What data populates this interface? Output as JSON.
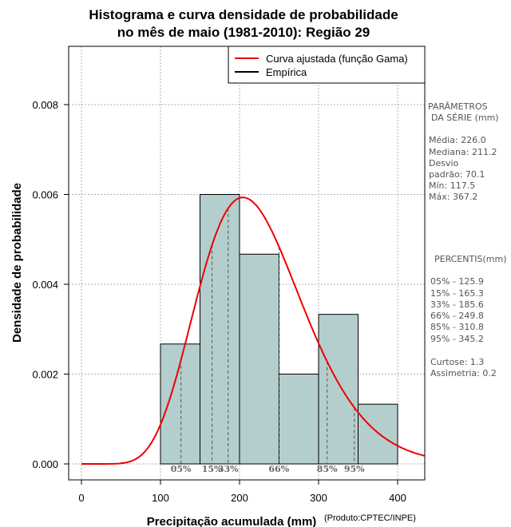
{
  "chart_data": {
    "type": "histogram",
    "title": "Histograma e curva densidade de probabilidade",
    "subtitle": "no mês de maio (1981-2010): Região 29",
    "xlabel": "Precipitação acumulada (mm)",
    "ylabel": "Densidade de probabilidade",
    "credit": "(Produto:CPTEC/INPE)",
    "xlim": [
      0,
      430
    ],
    "ylim": [
      0,
      0.0092
    ],
    "xticks": [
      0,
      100,
      200,
      300,
      400
    ],
    "xtick_labels": [
      "0",
      "100",
      "200",
      "300",
      "400"
    ],
    "yticks": [
      0.0,
      0.002,
      0.004,
      0.006,
      0.008
    ],
    "ytick_labels": [
      "0.000",
      "0.002",
      "0.004",
      "0.006",
      "0.008"
    ],
    "grid": true,
    "bars": [
      {
        "x0": 100,
        "x1": 150,
        "density": 0.00267
      },
      {
        "x0": 150,
        "x1": 200,
        "density": 0.006
      },
      {
        "x0": 200,
        "x1": 250,
        "density": 0.00467
      },
      {
        "x0": 250,
        "x1": 300,
        "density": 0.002
      },
      {
        "x0": 300,
        "x1": 350,
        "density": 0.00333
      },
      {
        "x0": 350,
        "x1": 400,
        "density": 0.00133
      }
    ],
    "gamma_fit": {
      "mean": 226.0,
      "sd": 70.1
    },
    "legend": {
      "placement": "top-right",
      "entries": [
        {
          "label": "Curva ajustada (função Gama)",
          "color": "#ee0000"
        },
        {
          "label": "Empírica",
          "color": "#000000"
        }
      ]
    },
    "percentile_markers": [
      {
        "label": "05%",
        "value": 125.9
      },
      {
        "label": "15%",
        "value": 165.3
      },
      {
        "label": "33%",
        "value": 185.6
      },
      {
        "label": "66%",
        "value": 249.8
      },
      {
        "label": "85%",
        "value": 310.8
      },
      {
        "label": "95%",
        "value": 345.2
      }
    ],
    "side_panel": {
      "params_title_1": "PARÂMETROS",
      "params_title_2": "DA SÉRIE (mm)",
      "media": "Média:  226.0",
      "mediana": "Mediana:  211.2",
      "desvio_1": "Desvio",
      "desvio_2": "padrão:  70.1",
      "min": "Mín:  117.5",
      "max": "Máx:  367.2",
      "percentis_title": "PERCENTIS(mm)",
      "percentis": [
        "05% -  125.9",
        "15% -  165.3",
        "33% -  185.6",
        "66% -  249.8",
        "85% -  310.8",
        "95% -  345.2"
      ],
      "curtose": "Curtose:  1.3",
      "assimetria": "Assimetria:  0.2"
    },
    "colors": {
      "bar_fill": "#b4cecd",
      "curve": "#ee0000",
      "grid": "#b0b0b0"
    }
  }
}
